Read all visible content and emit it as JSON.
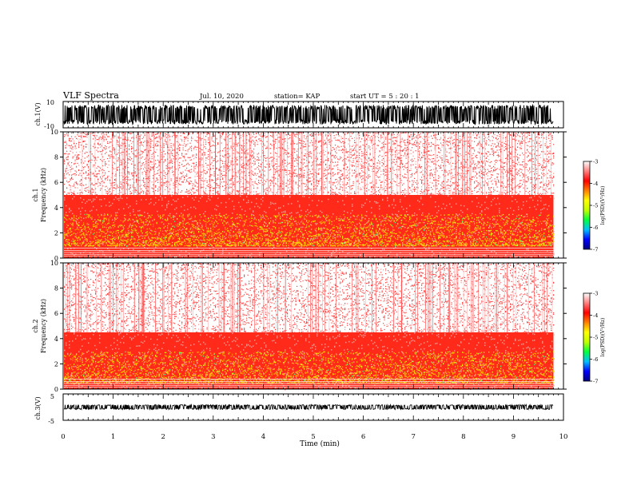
{
  "header": {
    "title": "VLF Spectra",
    "date": "Jul. 10, 2020",
    "station": "station= KAP",
    "start": "start UT = 5 : 20 : 1"
  },
  "panels": {
    "ch1_waveform": {
      "ylabel": "ch.1(V)",
      "ticks": [
        "10",
        "-10"
      ]
    },
    "ch1_spectrogram": {
      "ylabel_top": "ch.1",
      "ylabel": "Frequency (kHz)"
    },
    "ch2_spectrogram": {
      "ylabel_top": "ch.2",
      "ylabel": "Frequency (kHz)"
    },
    "ch3_waveform": {
      "ylabel": "ch.3(V)",
      "ticks": [
        "5",
        "-5"
      ]
    }
  },
  "colorbar": {
    "label": "log(PSD)(V²/Hz)",
    "ticks": [
      "-3",
      "-4",
      "-5",
      "-6",
      "-7"
    ],
    "colors": [
      "#000080",
      "#0000ff",
      "#00c0ff",
      "#00ff40",
      "#c0ff00",
      "#ffff00",
      "#ff8000",
      "#ff0000",
      "#ff8080",
      "#ffffff"
    ]
  },
  "xaxis": {
    "label": "Time (min)"
  },
  "chart_data": [
    {
      "type": "line",
      "name": "ch.1 waveform",
      "ylabel": "ch.1(V)",
      "ylim": [
        -10,
        10
      ],
      "xlim": [
        0,
        10
      ],
      "x_end": 9.8
    },
    {
      "type": "heatmap",
      "name": "ch.1 spectrogram",
      "ylabel": "Frequency (kHz)",
      "ylim": [
        0,
        10
      ],
      "yticks": [
        0,
        2,
        4,
        6,
        8,
        10
      ],
      "xlim": [
        0,
        10
      ],
      "x_end": 9.8,
      "zlim": [
        -7,
        -3
      ],
      "bands_kHz": {
        "yellow_intense": [
          1.0,
          3.5
        ],
        "red_strong": [
          0,
          5
        ],
        "sparse_red": [
          5,
          10
        ]
      }
    },
    {
      "type": "heatmap",
      "name": "ch.2 spectrogram",
      "ylabel": "Frequency (kHz)",
      "ylim": [
        0,
        10
      ],
      "yticks": [
        0,
        2,
        4,
        6,
        8,
        10
      ],
      "xlim": [
        0,
        10
      ],
      "x_end": 9.8,
      "zlim": [
        -7,
        -3
      ],
      "bands_kHz": {
        "yellow_intense": [
          0.5,
          3.0
        ],
        "red_strong": [
          0,
          4.5
        ],
        "sparse_red": [
          4.5,
          10
        ]
      }
    },
    {
      "type": "line",
      "name": "ch.3 waveform",
      "ylabel": "ch.3(V)",
      "ylim": [
        -5,
        5
      ],
      "xlim": [
        0,
        10
      ],
      "x_end": 9.8
    }
  ],
  "xticks": [
    "0",
    "1",
    "2",
    "3",
    "4",
    "5",
    "6",
    "7",
    "8",
    "9",
    "10"
  ]
}
